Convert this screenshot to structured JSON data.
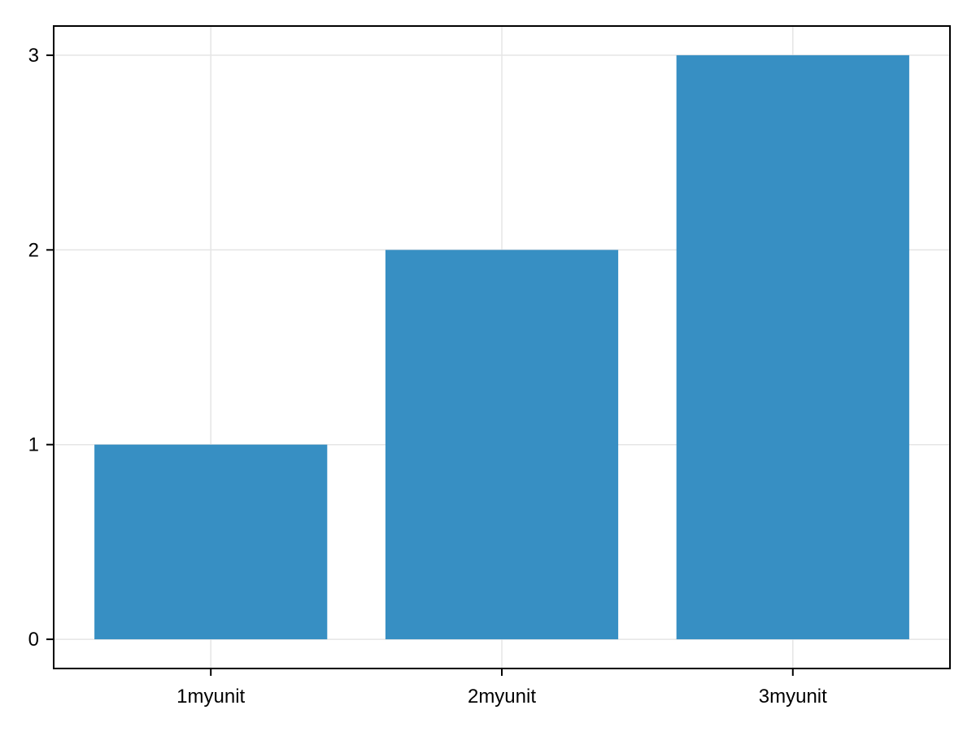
{
  "chart_data": {
    "type": "bar",
    "categories": [
      "1myunit",
      "2myunit",
      "3myunit"
    ],
    "x": [
      1,
      2,
      3
    ],
    "values": [
      1,
      2,
      3
    ],
    "bar_width": 0.8,
    "title": "",
    "xlabel": "",
    "ylabel": "",
    "xlim": [
      0.46,
      3.54
    ],
    "ylim": [
      -0.15,
      3.15
    ],
    "yticks": [
      0,
      1,
      2,
      3
    ],
    "ytick_labels": [
      "0",
      "1",
      "2",
      "3"
    ],
    "grid": true,
    "bar_color": "#378fc3",
    "grid_color": "#e5e5e5"
  }
}
